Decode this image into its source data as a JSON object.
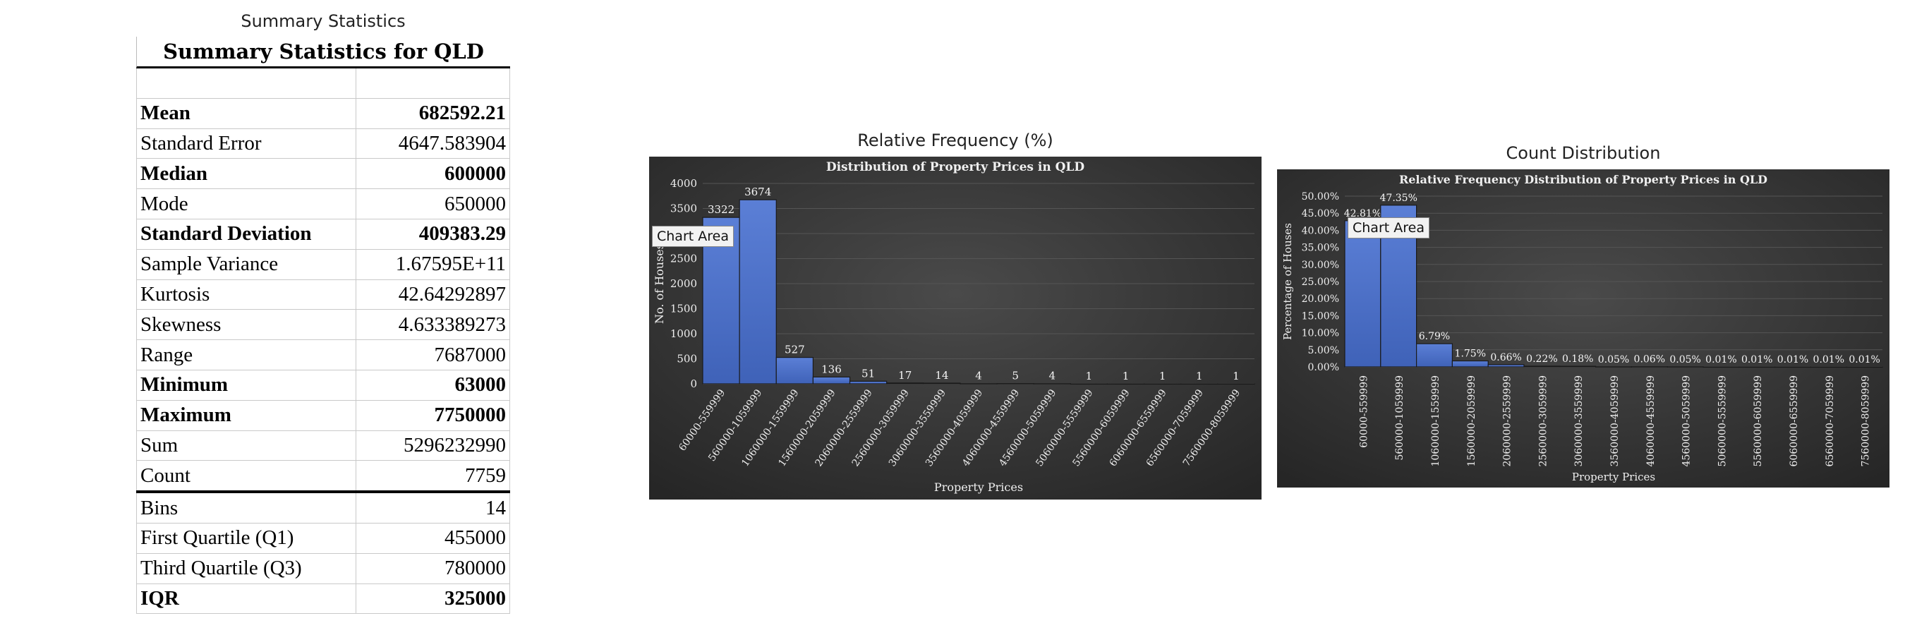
{
  "table": {
    "caption": "Summary Statistics",
    "title": "Summary Statistics for QLD",
    "rows": [
      {
        "label": "",
        "value": "",
        "bold": false
      },
      {
        "label": "Mean",
        "value": "682592.21",
        "bold": true
      },
      {
        "label": "Standard Error",
        "value": "4647.583904",
        "bold": false
      },
      {
        "label": "Median",
        "value": "600000",
        "bold": true
      },
      {
        "label": "Mode",
        "value": "650000",
        "bold": false
      },
      {
        "label": "Standard Deviation",
        "value": "409383.29",
        "bold": true
      },
      {
        "label": "Sample Variance",
        "value": "1.67595E+11",
        "bold": false
      },
      {
        "label": "Kurtosis",
        "value": "42.64292897",
        "bold": false
      },
      {
        "label": "Skewness",
        "value": "4.633389273",
        "bold": false
      },
      {
        "label": "Range",
        "value": "7687000",
        "bold": false
      },
      {
        "label": "Minimum",
        "value": "63000",
        "bold": true
      },
      {
        "label": "Maximum",
        "value": "7750000",
        "bold": true
      },
      {
        "label": "Sum",
        "value": "5296232990",
        "bold": false
      },
      {
        "label": "Count",
        "value": "7759",
        "bold": false
      },
      {
        "label": "Bins",
        "value": "14",
        "bold": false
      },
      {
        "label": "First Quartile (Q1)",
        "value": "455000",
        "bold": false
      },
      {
        "label": "Third Quartile (Q3)",
        "value": "780000",
        "bold": false
      },
      {
        "label": "IQR",
        "value": "325000",
        "bold": true
      }
    ]
  },
  "chart_data": [
    {
      "type": "bar",
      "caption": "Relative Frequency (%)",
      "title": "Distribution of Property Prices in QLD",
      "xlabel": "Property Prices",
      "ylabel": "No. of Houses",
      "ylim": [
        0,
        4000
      ],
      "yticks": [
        "0",
        "500",
        "1000",
        "1500",
        "2000",
        "2500",
        "3000",
        "3500",
        "4000"
      ],
      "categories": [
        "60000-559999",
        "560000-1059999",
        "1060000-1559999",
        "1560000-2059999",
        "2060000-2559999",
        "2560000-3059999",
        "3060000-3559999",
        "3560000-4059999",
        "4060000-4559999",
        "4560000-5059999",
        "5060000-5559999",
        "5560000-6059999",
        "6060000-6559999",
        "6560000-7059999",
        "7560000-8059999"
      ],
      "values": [
        3322,
        3674,
        527,
        136,
        51,
        17,
        14,
        4,
        5,
        4,
        1,
        1,
        1,
        1,
        1
      ],
      "labels": [
        "3322",
        "3674",
        "527",
        "136",
        "51",
        "17",
        "14",
        "4",
        "5",
        "4",
        "1",
        "1",
        "1",
        "1",
        "1"
      ],
      "tooltip": "Chart Area",
      "colors": {
        "bar": "#4a6fc4",
        "background": "#3a3a3a"
      }
    },
    {
      "type": "bar",
      "caption": "Count Distribution",
      "title": "Relative Frequency Distribution of Property Prices in QLD",
      "xlabel": "Property Prices",
      "ylabel": "Percentage of Houses",
      "ylim": [
        0,
        50
      ],
      "yticks": [
        "0.00%",
        "5.00%",
        "10.00%",
        "15.00%",
        "20.00%",
        "25.00%",
        "30.00%",
        "35.00%",
        "40.00%",
        "45.00%",
        "50.00%"
      ],
      "categories": [
        "60000-559999",
        "560000-1059999",
        "1060000-1559999",
        "1560000-2059999",
        "2060000-2559999",
        "2560000-3059999",
        "3060000-3559999",
        "3560000-4059999",
        "4060000-4559999",
        "4560000-5059999",
        "5060000-5559999",
        "5560000-6059999",
        "6060000-6559999",
        "6560000-7059999",
        "7560000-8059999"
      ],
      "values": [
        42.81,
        47.35,
        6.79,
        1.75,
        0.66,
        0.22,
        0.18,
        0.05,
        0.06,
        0.05,
        0.01,
        0.01,
        0.01,
        0.01,
        0.01
      ],
      "labels": [
        "42.81%",
        "47.35%",
        "6.79%",
        "1.75%",
        "0.66%",
        "0.22%",
        "0.18%",
        "0.05%",
        "0.06%",
        "0.05%",
        "0.01%",
        "0.01%",
        "0.01%",
        "0.01%",
        "0.01%"
      ],
      "tooltip": "Chart Area",
      "colors": {
        "bar": "#4a6fc4",
        "background": "#3a3a3a"
      }
    }
  ]
}
